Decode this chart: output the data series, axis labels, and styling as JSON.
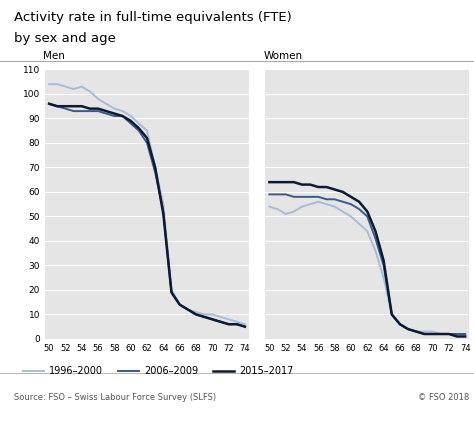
{
  "title_line1": "Activity rate in full-time equivalents (FTE)",
  "title_line2": "by sex and age",
  "source_text": "Source: FSO – Swiss Labour Force Survey (SLFS)",
  "copyright_text": "© FSO 2018",
  "ages": [
    50,
    51,
    52,
    53,
    54,
    55,
    56,
    57,
    58,
    59,
    60,
    61,
    62,
    63,
    64,
    65,
    66,
    67,
    68,
    69,
    70,
    71,
    72,
    73,
    74
  ],
  "men_1996_2000": [
    104,
    104,
    103,
    102,
    103,
    101,
    98,
    96,
    94,
    93,
    91,
    88,
    85,
    70,
    55,
    20,
    14,
    12,
    11,
    10,
    10,
    9,
    8,
    7,
    6
  ],
  "men_2006_2009": [
    96,
    95,
    94,
    93,
    93,
    93,
    93,
    92,
    91,
    91,
    88,
    85,
    80,
    68,
    52,
    19,
    14,
    12,
    10,
    9,
    8,
    7,
    6,
    6,
    5
  ],
  "men_2015_2017": [
    96,
    95,
    95,
    95,
    95,
    94,
    94,
    93,
    92,
    91,
    89,
    86,
    82,
    70,
    51,
    19,
    14,
    12,
    10,
    9,
    8,
    7,
    6,
    6,
    5
  ],
  "women_1996_2000": [
    54,
    53,
    51,
    52,
    54,
    55,
    56,
    55,
    54,
    52,
    50,
    47,
    44,
    36,
    25,
    10,
    6,
    4,
    3,
    3,
    3,
    2,
    2,
    2,
    2
  ],
  "women_2006_2009": [
    59,
    59,
    59,
    58,
    58,
    58,
    58,
    57,
    57,
    56,
    55,
    53,
    50,
    41,
    30,
    10,
    6,
    4,
    3,
    2,
    2,
    2,
    2,
    2,
    2
  ],
  "women_2015_2017": [
    64,
    64,
    64,
    64,
    63,
    63,
    62,
    62,
    61,
    60,
    58,
    56,
    52,
    44,
    32,
    10,
    6,
    4,
    3,
    2,
    2,
    2,
    2,
    1,
    1
  ],
  "color_1996_2000": "#a8bcd8",
  "color_2006_2009": "#3a5a8c",
  "color_2015_2017": "#0d1a33",
  "bg_color": "#e5e5e5",
  "ylim": [
    0,
    110
  ],
  "yticks": [
    0,
    10,
    20,
    30,
    40,
    50,
    60,
    70,
    80,
    90,
    100,
    110
  ],
  "xtick_labels": [
    "50",
    "52",
    "54",
    "56",
    "58",
    "60",
    "62",
    "64",
    "66",
    "68",
    "70",
    "72",
    "74"
  ],
  "xticks": [
    50,
    52,
    54,
    56,
    58,
    60,
    62,
    64,
    66,
    68,
    70,
    72,
    74
  ]
}
